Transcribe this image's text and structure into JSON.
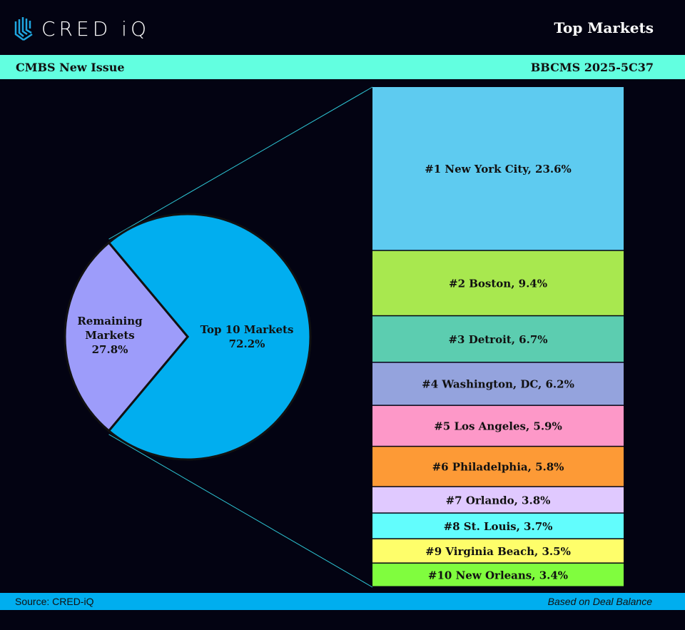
{
  "header": {
    "logo_text": "CRED iQ",
    "title": "Top Markets"
  },
  "band": {
    "left": "CMBS New Issue",
    "right": "BBCMS 2025-5C37"
  },
  "footer": {
    "source": "Source:  CRED-iQ",
    "note": "Based on Deal Balance"
  },
  "chart_data": [
    {
      "type": "pie",
      "slices": [
        {
          "label": "Remaining Markets",
          "label_lines": [
            "Remaining",
            "Markets",
            "27.8%"
          ],
          "value": 27.8,
          "color": "#9d9cfa"
        },
        {
          "label": "Top 10 Markets",
          "label_lines": [
            "Top 10 Markets",
            "72.2%"
          ],
          "value": 72.2,
          "color": "#01aeef"
        }
      ]
    },
    {
      "type": "bar",
      "orientation": "stacked-vertical",
      "categories": [
        "#1 New York City",
        "#2 Boston",
        "#3 Detroit",
        "#4 Washington, DC",
        "#5 Los Angeles",
        "#6 Philadelphia",
        "#7 Orlando",
        "#8 St. Louis",
        "#9 Virginia Beach",
        "#10 New Orleans"
      ],
      "values": [
        23.6,
        9.4,
        6.7,
        6.2,
        5.9,
        5.8,
        3.8,
        3.7,
        3.5,
        3.4
      ],
      "labels": [
        "#1 New York City, 23.6%",
        "#2 Boston, 9.4%",
        "#3 Detroit, 6.7%",
        "#4 Washington, DC, 6.2%",
        "#5 Los Angeles, 5.9%",
        "#6 Philadelphia, 5.8%",
        "#7 Orlando, 3.8%",
        "#8 St. Louis, 3.7%",
        "#9 Virginia Beach, 3.5%",
        "#10 New Orleans, 3.4%"
      ],
      "colors": [
        "#5ecbf0",
        "#a8e84f",
        "#5ccdb0",
        "#94a3dd",
        "#fd98c8",
        "#fd9a36",
        "#e0c9ff",
        "#62fdfd",
        "#fefe6a",
        "#80fd3e"
      ]
    }
  ]
}
